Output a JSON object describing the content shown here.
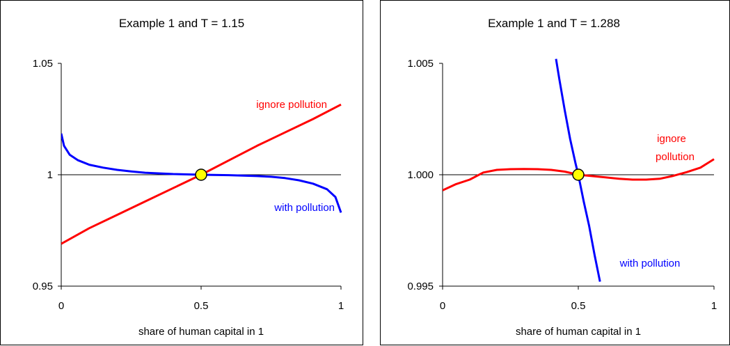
{
  "chart_data": [
    {
      "type": "line",
      "title": "Example 1 and T = 1.15",
      "xlabel": "share of human capital in 1",
      "ylabel": "",
      "xlim": [
        0,
        1
      ],
      "ylim": [
        0.95,
        1.05
      ],
      "x_ticks": [
        "0",
        "0.5",
        "1"
      ],
      "y_ticks": [
        "0.95",
        "1",
        "1.05"
      ],
      "reference_line": 1,
      "series": [
        {
          "name": "ignore pollution",
          "color": "#ff0000",
          "x": [
            0,
            0.1,
            0.2,
            0.3,
            0.4,
            0.5,
            0.6,
            0.7,
            0.8,
            0.9,
            1.0
          ],
          "y": [
            0.969,
            0.976,
            0.982,
            0.988,
            0.994,
            1.0,
            1.0065,
            1.013,
            1.019,
            1.025,
            1.0315
          ]
        },
        {
          "name": "with pollution",
          "color": "#0000ff",
          "x": [
            0,
            0.01,
            0.03,
            0.06,
            0.1,
            0.15,
            0.2,
            0.25,
            0.3,
            0.4,
            0.5,
            0.6,
            0.7,
            0.75,
            0.8,
            0.85,
            0.9,
            0.95,
            0.98,
            1.0
          ],
          "y": [
            1.0185,
            1.013,
            1.009,
            1.0065,
            1.0045,
            1.0032,
            1.0022,
            1.0015,
            1.0009,
            1.0003,
            1.0,
            0.9998,
            0.9994,
            0.9991,
            0.9985,
            0.9975,
            0.996,
            0.9935,
            0.99,
            0.983
          ]
        }
      ],
      "annotations": [
        {
          "text": "ignore pollution",
          "color": "#ff0000"
        },
        {
          "text": "with pollution",
          "color": "#0000ff"
        }
      ],
      "marker": {
        "x": 0.5,
        "y": 1.0,
        "color": "#ffff00"
      }
    },
    {
      "type": "line",
      "title": "Example 1 and T = 1.288",
      "xlabel": "share of human capital in 1",
      "ylabel": "",
      "xlim": [
        0,
        1
      ],
      "ylim": [
        0.995,
        1.005
      ],
      "x_ticks": [
        "0",
        "0.5",
        "1"
      ],
      "y_ticks": [
        "0.995",
        "1.000",
        "1.005"
      ],
      "reference_line": 1,
      "series": [
        {
          "name": "ignore pollution",
          "color": "#ff0000",
          "x": [
            0,
            0.05,
            0.1,
            0.15,
            0.2,
            0.25,
            0.3,
            0.35,
            0.4,
            0.45,
            0.5,
            0.55,
            0.6,
            0.65,
            0.7,
            0.75,
            0.8,
            0.85,
            0.9,
            0.95,
            1.0
          ],
          "y": [
            0.9993,
            0.99958,
            0.99978,
            1.0001,
            1.00022,
            1.00025,
            1.00026,
            1.00025,
            1.00022,
            1.00014,
            1.0,
            0.99994,
            0.99988,
            0.99982,
            0.99978,
            0.99978,
            0.99982,
            0.99995,
            1.00012,
            1.00032,
            1.0007
          ]
        },
        {
          "name": "with pollution",
          "color": "#0000ff",
          "x": [
            0.418,
            0.43,
            0.45,
            0.47,
            0.49,
            0.5,
            0.52,
            0.54,
            0.56,
            0.58
          ],
          "y": [
            1.0052,
            1.0043,
            1.0029,
            1.0016,
            1.0005,
            1.0,
            0.9988,
            0.9977,
            0.9964,
            0.9952
          ]
        }
      ],
      "annotations": [
        {
          "text": "ignore",
          "color": "#ff0000"
        },
        {
          "text": "pollution",
          "color": "#ff0000"
        },
        {
          "text": "with pollution",
          "color": "#0000ff"
        }
      ],
      "marker": {
        "x": 0.5,
        "y": 1.0,
        "color": "#ffff00"
      }
    }
  ]
}
